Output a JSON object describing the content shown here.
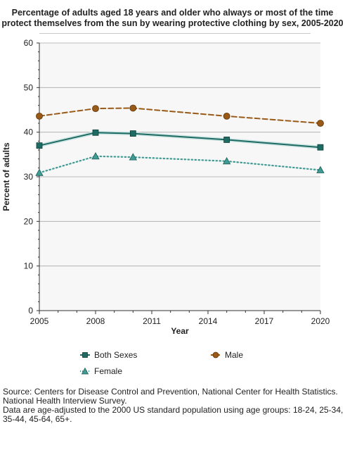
{
  "chart_data": {
    "type": "line",
    "title": "Percentage of adults aged 18 years and older who always or most of the time protect themselves from the sun by wearing protective clothing by sex, 2005-2020",
    "xlabel": "Year",
    "ylabel": "Percent of adults",
    "xlim": [
      2005,
      2020
    ],
    "ylim": [
      0,
      60
    ],
    "xticks": [
      2005,
      2008,
      2011,
      2014,
      2017,
      2020
    ],
    "yticks": [
      0,
      10,
      20,
      30,
      40,
      50,
      60
    ],
    "grid": true,
    "legend_position": "bottom",
    "series": [
      {
        "name": "Both Sexes",
        "color": "#1e6b64",
        "marker": "square",
        "line_style": "solid",
        "x": [
          2005,
          2008,
          2010,
          2015,
          2020
        ],
        "values": [
          37.0,
          39.9,
          39.7,
          38.3,
          36.6
        ]
      },
      {
        "name": "Male",
        "color": "#9a5a17",
        "marker": "circle",
        "line_style": "dashed",
        "x": [
          2005,
          2008,
          2010,
          2015,
          2020
        ],
        "values": [
          43.6,
          45.3,
          45.4,
          43.6,
          42.0
        ]
      },
      {
        "name": "Female",
        "color": "#3f9b93",
        "marker": "triangle",
        "line_style": "dotted",
        "x": [
          2005,
          2008,
          2010,
          2015,
          2020
        ],
        "values": [
          30.9,
          34.6,
          34.4,
          33.5,
          31.5
        ]
      }
    ]
  },
  "footnotes": [
    "Source: Centers for Disease Control and Prevention, National Center for Health Statistics. National Health Interview Survey.",
    "Data are age-adjusted to the 2000 US standard population using age groups: 18-24, 25-34, 35-44, 45-64, 65+."
  ]
}
